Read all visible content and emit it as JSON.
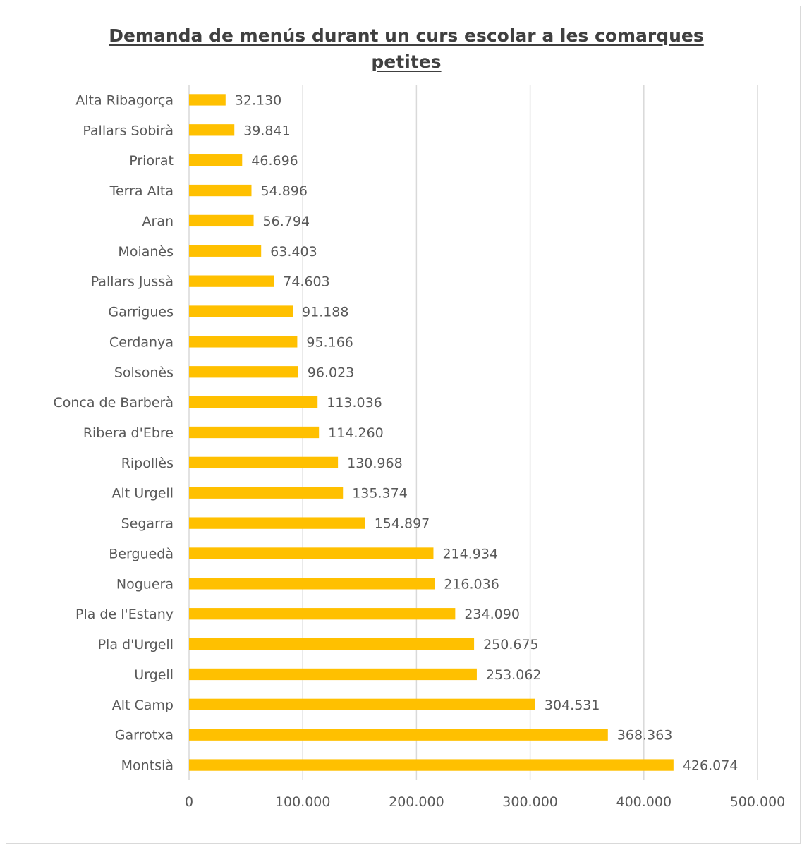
{
  "chart_data": {
    "type": "bar",
    "orientation": "horizontal",
    "title": "Demanda de menús durant un curs escolar a les comarques petites",
    "xlabel": "",
    "ylabel": "",
    "xlim": [
      0,
      500000
    ],
    "x_ticks": [
      0,
      100000,
      200000,
      300000,
      400000,
      500000
    ],
    "x_tick_labels": [
      "0",
      "100.000",
      "200.000",
      "300.000",
      "400.000",
      "500.000"
    ],
    "grid": "vertical",
    "legend": "none",
    "bar_color": "#FFC000",
    "categories": [
      "Alta Ribagorça",
      "Pallars Sobirà",
      "Priorat",
      "Terra Alta",
      "Aran",
      "Moianès",
      "Pallars Jussà",
      "Garrigues",
      "Cerdanya",
      "Solsonès",
      "Conca de Barberà",
      "Ribera d'Ebre",
      "Ripollès",
      "Alt Urgell",
      "Segarra",
      "Berguedà",
      "Noguera",
      "Pla de l'Estany",
      "Pla d'Urgell",
      "Urgell",
      "Alt Camp",
      "Garrotxa",
      "Montsià"
    ],
    "values": [
      32130,
      39841,
      46696,
      54896,
      56794,
      63403,
      74603,
      91188,
      95166,
      96023,
      113036,
      114260,
      130968,
      135374,
      154897,
      214934,
      216036,
      234090,
      250675,
      253062,
      304531,
      368363,
      426074
    ],
    "value_labels": [
      "32.130",
      "39.841",
      "46.696",
      "54.896",
      "56.794",
      "63.403",
      "74.603",
      "91.188",
      "95.166",
      "96.023",
      "113.036",
      "114.260",
      "130.968",
      "135.374",
      "154.897",
      "214.934",
      "216.036",
      "234.090",
      "250.675",
      "253.062",
      "304.531",
      "368.363",
      "426.074"
    ]
  }
}
